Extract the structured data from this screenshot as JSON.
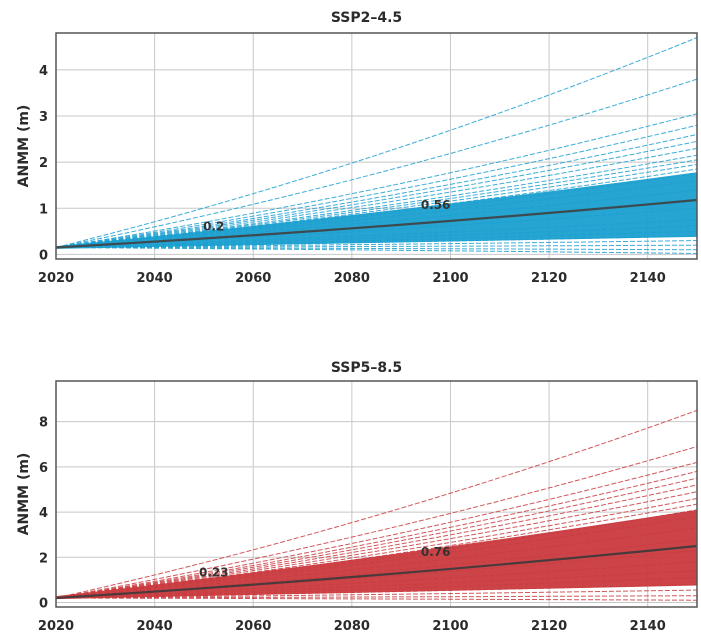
{
  "chart_data": [
    {
      "type": "line",
      "title": "SSP2–4.5",
      "ylabel": "ANMM (m)",
      "xlabel": "",
      "xlim": [
        2020,
        2150
      ],
      "ylim": [
        -0.1,
        4.8
      ],
      "x_ticks": [
        2020,
        2040,
        2060,
        2080,
        2100,
        2120,
        2140
      ],
      "x_tick_labels": [
        "2020",
        "2040",
        "2060",
        "2080",
        "2100",
        "2120",
        "2140"
      ],
      "y_ticks": [
        0,
        1,
        2,
        3,
        4
      ],
      "y_tick_labels": [
        "0",
        "1",
        "2",
        "3",
        "4"
      ],
      "grid": true,
      "colors": {
        "ensemble": "#1a9fd0",
        "median": "#3d4a50"
      },
      "x": [
        2020,
        2150
      ],
      "median": {
        "start": 0.15,
        "end": 1.18
      },
      "band": {
        "low": [
          0.12,
          0.38
        ],
        "high": [
          0.18,
          1.78
        ]
      },
      "ensemble_endpoints": [
        0.02,
        0.1,
        0.2,
        0.3,
        0.4,
        0.5,
        0.62,
        0.75,
        1.0,
        1.2,
        1.4,
        1.6,
        1.75,
        1.85,
        1.95,
        2.05,
        2.15,
        2.3,
        2.45,
        2.6,
        2.8,
        3.05,
        3.8,
        4.7
      ],
      "annotations": [
        {
          "text": "0.2",
          "x": 2052,
          "y": 0.52
        },
        {
          "text": "0.56",
          "x": 2097,
          "y": 0.98
        }
      ]
    },
    {
      "type": "line",
      "title": "SSP5–8.5",
      "ylabel": "ANMM (m)",
      "xlabel": "",
      "xlim": [
        2020,
        2150
      ],
      "ylim": [
        -0.2,
        9.8
      ],
      "x_ticks": [
        2020,
        2040,
        2060,
        2080,
        2100,
        2120,
        2140
      ],
      "x_tick_labels": [
        "2020",
        "2040",
        "2060",
        "2080",
        "2100",
        "2120",
        "2140"
      ],
      "y_ticks": [
        0,
        2,
        4,
        6,
        8
      ],
      "y_tick_labels": [
        "0",
        "2",
        "4",
        "6",
        "8"
      ],
      "grid": true,
      "colors": {
        "ensemble": "#c93a3e",
        "median": "#4a3a3c"
      },
      "x": [
        2020,
        2150
      ],
      "median": {
        "start": 0.2,
        "end": 2.5
      },
      "band": {
        "low": [
          0.15,
          0.75
        ],
        "high": [
          0.28,
          4.1
        ]
      },
      "ensemble_endpoints": [
        0.1,
        0.3,
        0.55,
        0.8,
        1.1,
        1.4,
        1.8,
        2.3,
        2.8,
        3.3,
        3.8,
        4.1,
        4.35,
        4.6,
        4.9,
        5.2,
        5.5,
        5.8,
        6.2,
        6.9,
        8.5
      ],
      "annotations": [
        {
          "text": "0.23",
          "x": 2052,
          "y": 1.15
        },
        {
          "text": "0.76",
          "x": 2097,
          "y": 2.05
        }
      ]
    }
  ]
}
